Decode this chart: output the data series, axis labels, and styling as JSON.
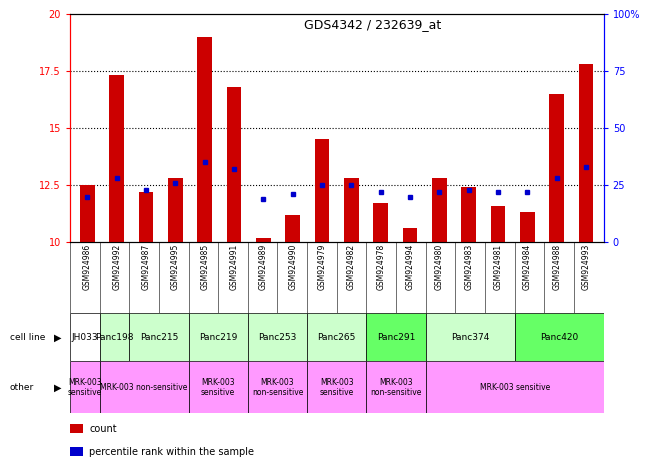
{
  "title": "GDS4342 / 232639_at",
  "gsm_labels": [
    "GSM924986",
    "GSM924992",
    "GSM924987",
    "GSM924995",
    "GSM924985",
    "GSM924991",
    "GSM924989",
    "GSM924990",
    "GSM924979",
    "GSM924982",
    "GSM924978",
    "GSM924994",
    "GSM924980",
    "GSM924983",
    "GSM924981",
    "GSM924984",
    "GSM924988",
    "GSM924993"
  ],
  "bar_heights": [
    12.5,
    17.3,
    12.2,
    12.8,
    19.0,
    16.8,
    10.2,
    11.2,
    14.5,
    12.8,
    11.7,
    10.6,
    12.8,
    12.4,
    11.6,
    11.3,
    16.5,
    17.8
  ],
  "blue_markers": [
    12.0,
    12.8,
    12.3,
    12.6,
    13.5,
    13.2,
    11.9,
    12.1,
    12.5,
    12.5,
    12.2,
    12.0,
    12.2,
    12.3,
    12.2,
    12.2,
    12.8,
    13.3
  ],
  "ylim_left": [
    10,
    20
  ],
  "ylim_right": [
    0,
    100
  ],
  "yticks_left": [
    10,
    12.5,
    15,
    17.5,
    20
  ],
  "yticks_right": [
    0,
    25,
    50,
    75,
    100
  ],
  "ytick_labels_left": [
    "10",
    "12.5",
    "15",
    "17.5",
    "20"
  ],
  "ytick_labels_right": [
    "0",
    "25",
    "50",
    "75",
    "100%"
  ],
  "dotted_lines": [
    12.5,
    15.0,
    17.5
  ],
  "bar_color": "#cc0000",
  "blue_color": "#0000cc",
  "cell_lines": [
    {
      "name": "JH033",
      "start": 0,
      "end": 1,
      "color": "#ffffff"
    },
    {
      "name": "Panc198",
      "start": 1,
      "end": 2,
      "color": "#ccffcc"
    },
    {
      "name": "Panc215",
      "start": 2,
      "end": 4,
      "color": "#ccffcc"
    },
    {
      "name": "Panc219",
      "start": 4,
      "end": 6,
      "color": "#ccffcc"
    },
    {
      "name": "Panc253",
      "start": 6,
      "end": 8,
      "color": "#ccffcc"
    },
    {
      "name": "Panc265",
      "start": 8,
      "end": 10,
      "color": "#ccffcc"
    },
    {
      "name": "Panc291",
      "start": 10,
      "end": 12,
      "color": "#66ff66"
    },
    {
      "name": "Panc374",
      "start": 12,
      "end": 15,
      "color": "#ccffcc"
    },
    {
      "name": "Panc420",
      "start": 15,
      "end": 18,
      "color": "#66ff66"
    }
  ],
  "other_labels": [
    {
      "label": "MRK-003\nsensitive",
      "start": 0,
      "end": 1,
      "color": "#ff99ff"
    },
    {
      "label": "MRK-003 non-sensitive",
      "start": 1,
      "end": 4,
      "color": "#ff99ff"
    },
    {
      "label": "MRK-003\nsensitive",
      "start": 4,
      "end": 6,
      "color": "#ff99ff"
    },
    {
      "label": "MRK-003\nnon-sensitive",
      "start": 6,
      "end": 8,
      "color": "#ff99ff"
    },
    {
      "label": "MRK-003\nsensitive",
      "start": 8,
      "end": 10,
      "color": "#ff99ff"
    },
    {
      "label": "MRK-003\nnon-sensitive",
      "start": 10,
      "end": 12,
      "color": "#ff99ff"
    },
    {
      "label": "MRK-003 sensitive",
      "start": 12,
      "end": 18,
      "color": "#ff99ff"
    }
  ],
  "row_label_cell": "cell line",
  "row_label_other": "other",
  "legend_count_color": "#cc0000",
  "legend_blue_color": "#0000cc",
  "n_bars": 18,
  "xtick_bg_color": "#cccccc",
  "bar_width": 0.5
}
